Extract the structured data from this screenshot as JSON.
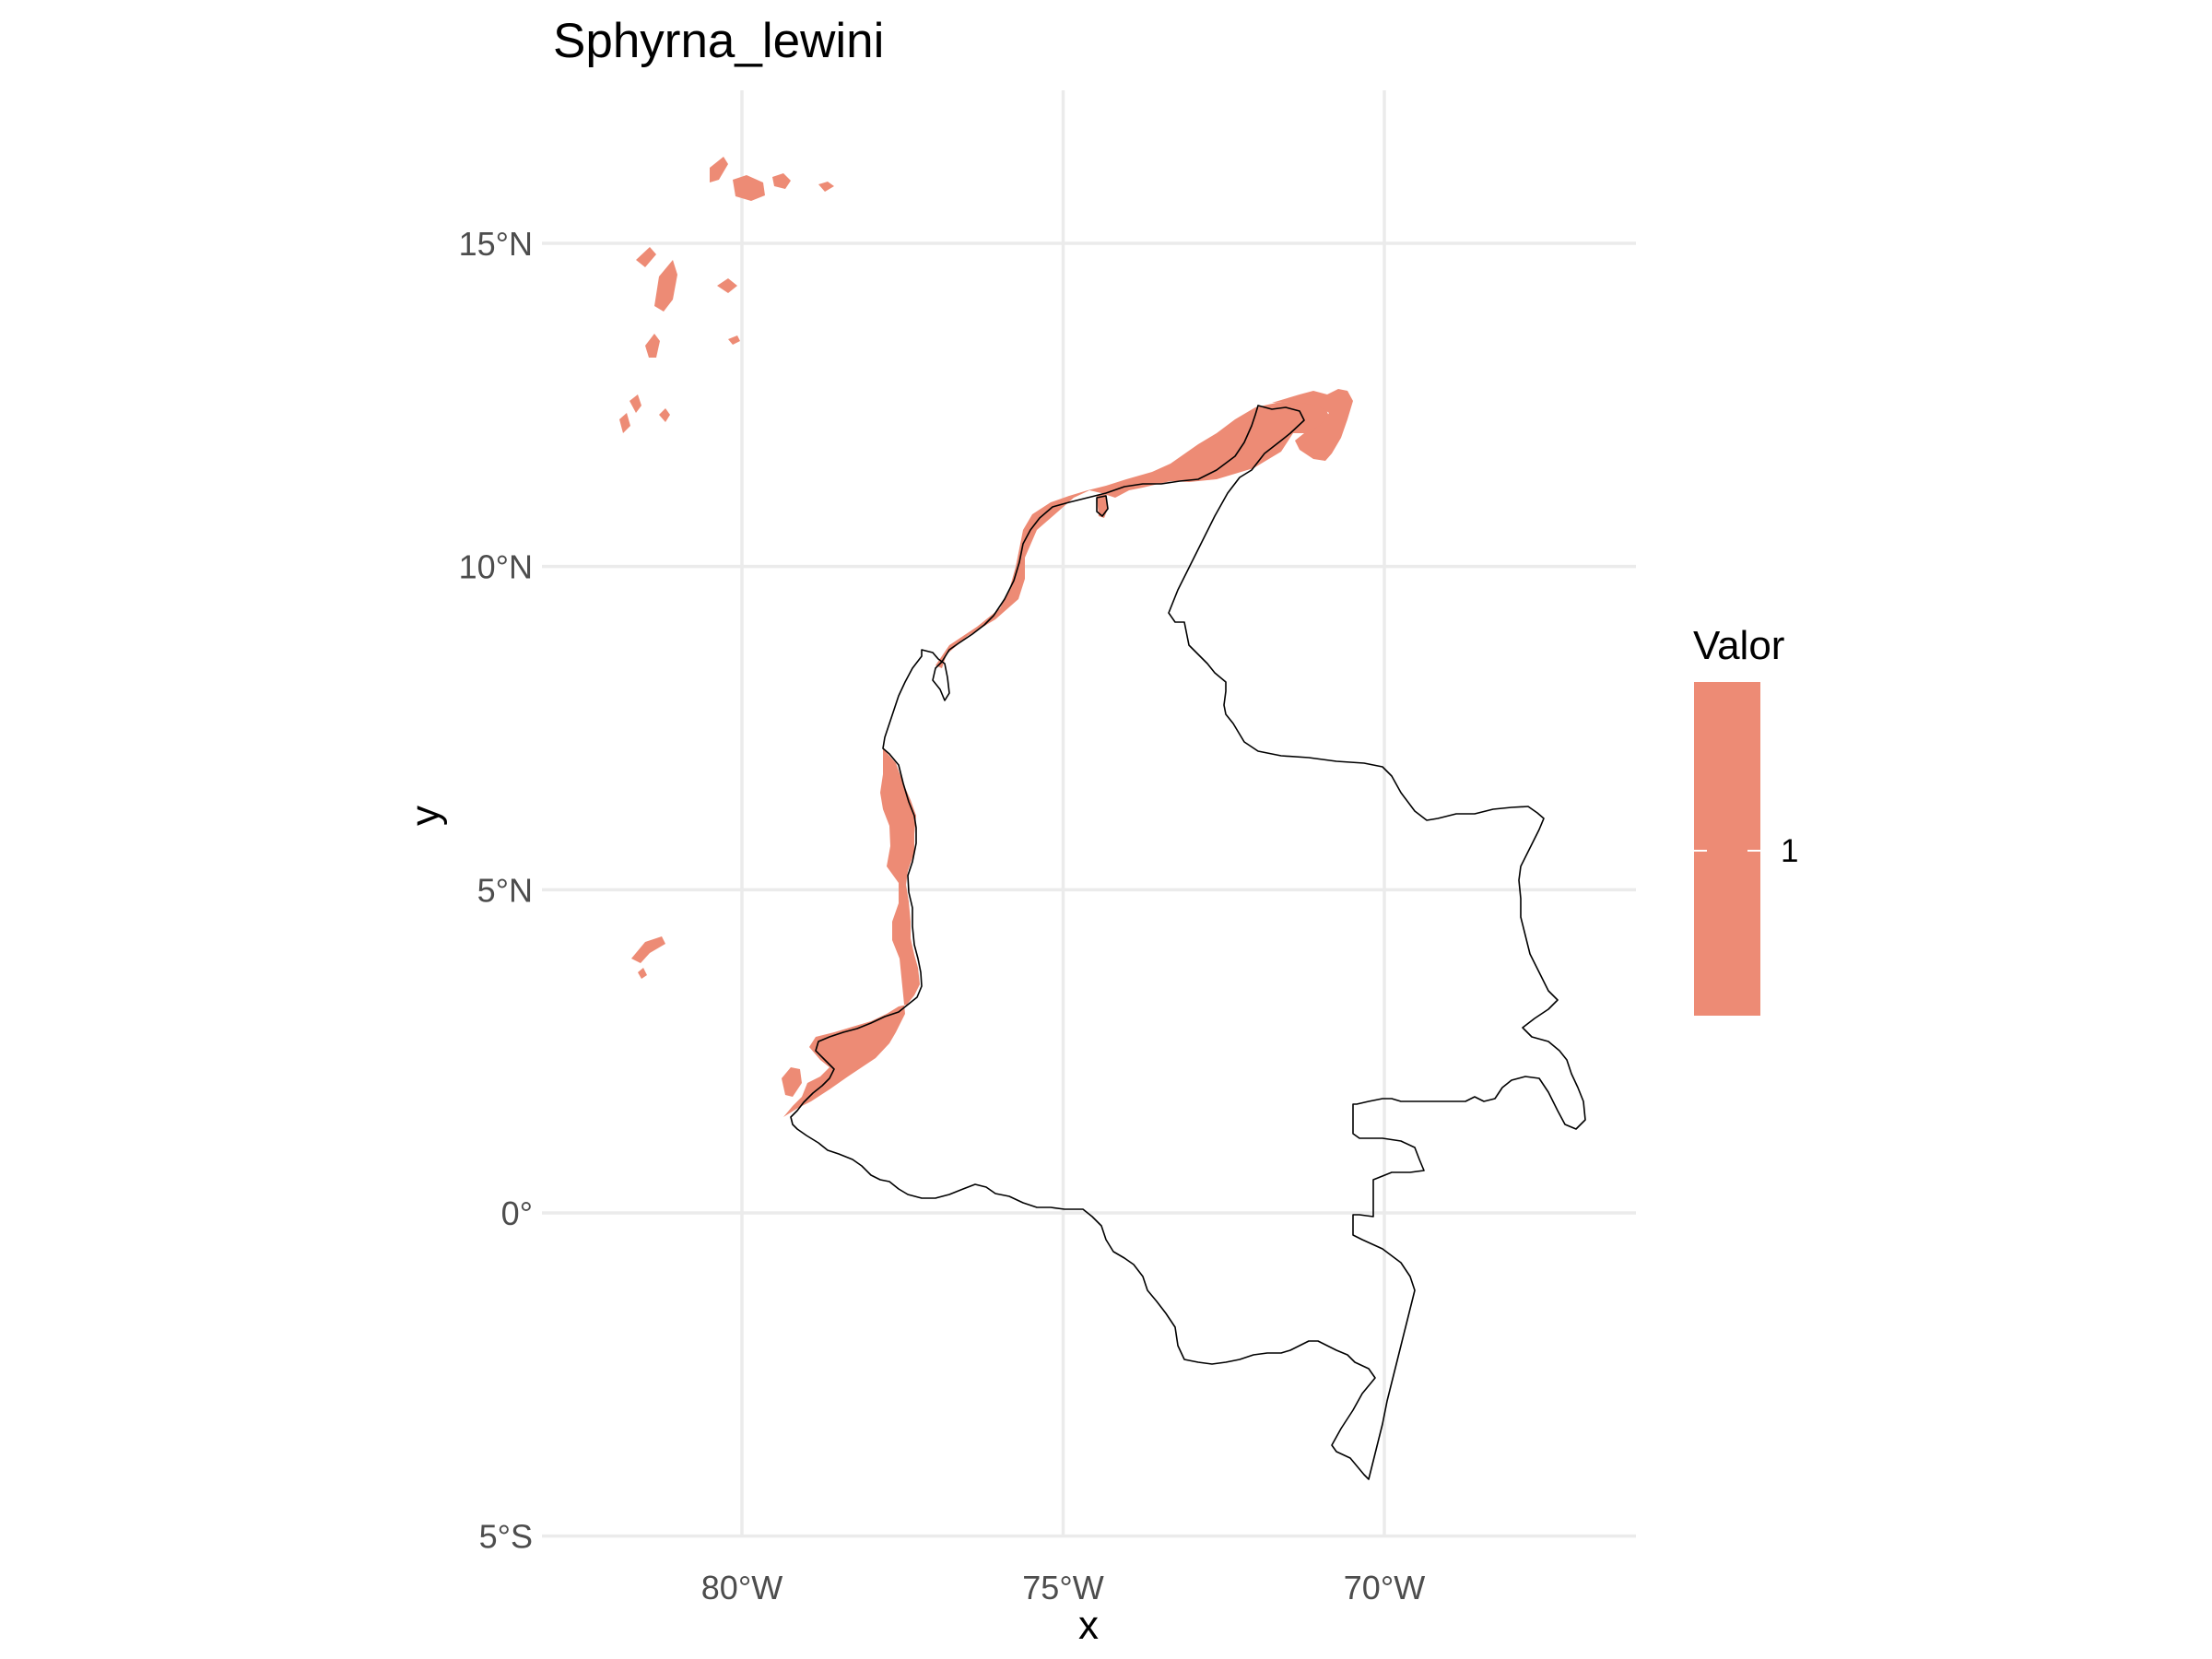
{
  "title": "Sphyrna_lewini",
  "x_label": "x",
  "y_label": "y",
  "legend": {
    "title": "Valor",
    "label": "1",
    "color": "#ed8b75"
  },
  "chart_data": {
    "type": "map",
    "title": "Sphyrna_lewini",
    "xlabel": "x",
    "ylabel": "y",
    "xlim": [
      -83,
      -66
    ],
    "ylim": [
      -5,
      17
    ],
    "x_ticks": [
      {
        "value": -80,
        "label": "80°W"
      },
      {
        "value": -75,
        "label": "75°W"
      },
      {
        "value": -70,
        "label": "70°W"
      }
    ],
    "y_ticks": [
      {
        "value": -5,
        "label": "5°S"
      },
      {
        "value": 0,
        "label": "0°"
      },
      {
        "value": 5,
        "label": "5°N"
      },
      {
        "value": 10,
        "label": "10°N"
      },
      {
        "value": 15,
        "label": "15°N"
      }
    ],
    "grid": true,
    "legend_position": "right",
    "fill_value": 1,
    "fill_color": "#ed8b75",
    "border_color": "#000000"
  }
}
